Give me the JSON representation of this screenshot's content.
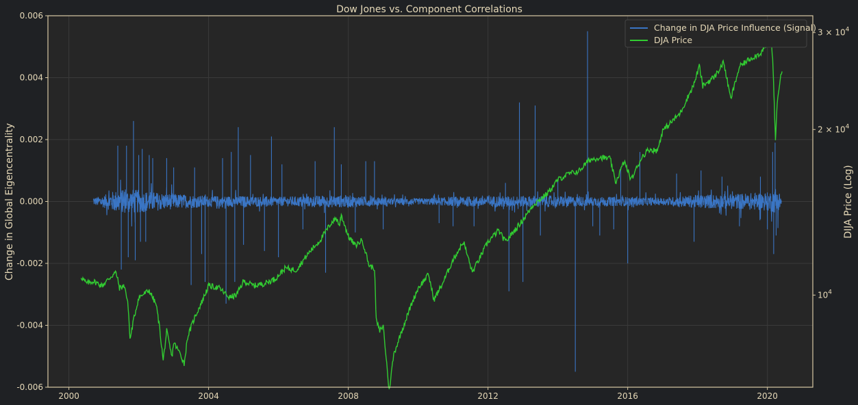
{
  "chart_data": {
    "type": "line",
    "title": "Dow Jones vs. Component Correlations",
    "ylabel": "Change in Global Eigencentrality",
    "y2label": "DIJA Price (Log)",
    "xlim": [
      1999.4,
      2021.3
    ],
    "ylim": [
      -0.006,
      0.006
    ],
    "y2lim": [
      6800,
      32200
    ],
    "y2_scale": "log",
    "x_ticks": [
      "2000",
      "2004",
      "2008",
      "2012",
      "2016",
      "2020"
    ],
    "x_tick_values": [
      2000,
      2004,
      2008,
      2012,
      2016,
      2020
    ],
    "y_ticks": [
      "0.006",
      "0.004",
      "0.002",
      "0.000",
      "-0.002",
      "-0.004",
      "-0.006"
    ],
    "y_tick_values": [
      0.006,
      0.004,
      0.002,
      0.0,
      -0.002,
      -0.004,
      -0.006
    ],
    "y2_ticks": [
      {
        "value": 10000,
        "mantissa": "",
        "exponent": "4"
      },
      {
        "value": 20000,
        "mantissa": "2",
        "exponent": "4"
      },
      {
        "value": 30000,
        "mantissa": "3",
        "exponent": "4"
      }
    ],
    "grid": true,
    "legend_position": "top-right",
    "colors": {
      "background": "#1f2124",
      "plot_bg": "#262626",
      "frame": "#d9caa5",
      "grid": "#3a3a3a",
      "text": "#e6d9b8",
      "signal": "#3a75c4",
      "price": "#32cd32"
    },
    "series": [
      {
        "name": "Change in DJA Price Influence (Signal)",
        "axis": "left",
        "noise_amplitude": [
          [
            2000.7,
            0.00012
          ],
          [
            2001.0,
            0.0002
          ],
          [
            2001.3,
            0.00035
          ],
          [
            2001.8,
            0.0004
          ],
          [
            2002.5,
            0.0003
          ],
          [
            2003.0,
            0.00025
          ],
          [
            2004.0,
            0.00018
          ],
          [
            2005.0,
            0.00018
          ],
          [
            2006.0,
            0.00015
          ],
          [
            2007.0,
            0.00018
          ],
          [
            2008.0,
            0.0002
          ],
          [
            2009.0,
            0.00012
          ],
          [
            2010.0,
            0.0001
          ],
          [
            2011.0,
            0.00015
          ],
          [
            2012.0,
            0.00018
          ],
          [
            2013.0,
            0.00018
          ],
          [
            2014.0,
            0.00018
          ],
          [
            2015.0,
            0.00015
          ],
          [
            2016.0,
            0.00015
          ],
          [
            2017.0,
            0.00012
          ],
          [
            2018.0,
            0.00022
          ],
          [
            2019.0,
            0.00025
          ],
          [
            2020.0,
            0.0003
          ],
          [
            2020.3,
            0.0004
          ],
          [
            2020.4,
            0.0002
          ]
        ],
        "spikes": [
          [
            2001.4,
            0.0018
          ],
          [
            2001.5,
            -0.0022
          ],
          [
            2001.65,
            0.0018
          ],
          [
            2001.7,
            -0.0018
          ],
          [
            2001.85,
            0.0026
          ],
          [
            2001.9,
            -0.0019
          ],
          [
            2002.0,
            0.0015
          ],
          [
            2002.05,
            -0.0013
          ],
          [
            2002.1,
            0.0017
          ],
          [
            2002.2,
            -0.0013
          ],
          [
            2002.3,
            0.0015
          ],
          [
            2002.4,
            0.0014
          ],
          [
            2002.8,
            0.0014
          ],
          [
            2003.0,
            0.0011
          ],
          [
            2003.5,
            -0.0027
          ],
          [
            2003.6,
            0.0011
          ],
          [
            2003.8,
            -0.0017
          ],
          [
            2003.9,
            -0.0026
          ],
          [
            2004.4,
            0.0014
          ],
          [
            2004.5,
            -0.0033
          ],
          [
            2004.65,
            0.0016
          ],
          [
            2004.75,
            -0.0026
          ],
          [
            2004.85,
            0.0024
          ],
          [
            2005.0,
            -0.0014
          ],
          [
            2005.2,
            0.0015
          ],
          [
            2005.6,
            -0.0016
          ],
          [
            2005.8,
            0.0021
          ],
          [
            2006.0,
            -0.0018
          ],
          [
            2006.1,
            0.0012
          ],
          [
            2006.7,
            -0.0009
          ],
          [
            2007.05,
            0.0013
          ],
          [
            2007.35,
            -0.0023
          ],
          [
            2007.6,
            0.0024
          ],
          [
            2007.8,
            0.0012
          ],
          [
            2008.2,
            -0.001
          ],
          [
            2008.5,
            0.0013
          ],
          [
            2008.75,
            0.0013
          ],
          [
            2009.0,
            -0.0009
          ],
          [
            2010.6,
            -0.0007
          ],
          [
            2011.0,
            -0.0008
          ],
          [
            2011.6,
            -0.0008
          ],
          [
            2012.5,
            0.0006
          ],
          [
            2012.6,
            -0.0029
          ],
          [
            2012.9,
            0.0032
          ],
          [
            2013.0,
            -0.0026
          ],
          [
            2013.35,
            0.0031
          ],
          [
            2013.5,
            -0.0011
          ],
          [
            2014.0,
            0.0007
          ],
          [
            2014.5,
            -0.0055
          ],
          [
            2014.85,
            0.0055
          ],
          [
            2015.0,
            -0.0008
          ],
          [
            2015.2,
            -0.0011
          ],
          [
            2015.6,
            -0.0009
          ],
          [
            2015.8,
            0.0011
          ],
          [
            2016.0,
            -0.002
          ],
          [
            2016.35,
            0.0016
          ],
          [
            2017.4,
            0.0009
          ],
          [
            2017.9,
            -0.0013
          ],
          [
            2018.1,
            0.001
          ],
          [
            2018.7,
            0.0008
          ],
          [
            2019.2,
            -0.0008
          ],
          [
            2019.8,
            0.0008
          ],
          [
            2020.0,
            -0.0009
          ],
          [
            2020.15,
            0.0016
          ],
          [
            2020.18,
            -0.0017
          ],
          [
            2020.22,
            0.0019
          ],
          [
            2020.25,
            -0.0011
          ]
        ]
      },
      {
        "name": "DJA Price",
        "axis": "right",
        "points": [
          [
            2000.35,
            10800
          ],
          [
            2000.5,
            10500
          ],
          [
            2000.7,
            10600
          ],
          [
            2000.95,
            10400
          ],
          [
            2001.2,
            10800
          ],
          [
            2001.35,
            11000
          ],
          [
            2001.45,
            10300
          ],
          [
            2001.6,
            10400
          ],
          [
            2001.7,
            9500
          ],
          [
            2001.75,
            8300
          ],
          [
            2001.85,
            9000
          ],
          [
            2002.0,
            9900
          ],
          [
            2002.3,
            10200
          ],
          [
            2002.5,
            9600
          ],
          [
            2002.6,
            8700
          ],
          [
            2002.7,
            7600
          ],
          [
            2002.8,
            8600
          ],
          [
            2002.95,
            7700
          ],
          [
            2003.0,
            8200
          ],
          [
            2003.2,
            7800
          ],
          [
            2003.3,
            7500
          ],
          [
            2003.4,
            8400
          ],
          [
            2003.6,
            9100
          ],
          [
            2003.8,
            9700
          ],
          [
            2004.0,
            10400
          ],
          [
            2004.3,
            10300
          ],
          [
            2004.6,
            9900
          ],
          [
            2004.8,
            10000
          ],
          [
            2005.0,
            10600
          ],
          [
            2005.3,
            10400
          ],
          [
            2005.6,
            10500
          ],
          [
            2005.9,
            10700
          ],
          [
            2006.2,
            11200
          ],
          [
            2006.5,
            11100
          ],
          [
            2006.9,
            12000
          ],
          [
            2007.2,
            12600
          ],
          [
            2007.5,
            13500
          ],
          [
            2007.65,
            13800
          ],
          [
            2007.75,
            13400
          ],
          [
            2007.8,
            14000
          ],
          [
            2008.0,
            12800
          ],
          [
            2008.2,
            12300
          ],
          [
            2008.4,
            12600
          ],
          [
            2008.6,
            11300
          ],
          [
            2008.75,
            11200
          ],
          [
            2008.8,
            9000
          ],
          [
            2008.9,
            8600
          ],
          [
            2009.0,
            8800
          ],
          [
            2009.1,
            7500
          ],
          [
            2009.17,
            6700
          ],
          [
            2009.3,
            7800
          ],
          [
            2009.5,
            8500
          ],
          [
            2009.8,
            9600
          ],
          [
            2010.0,
            10300
          ],
          [
            2010.3,
            10900
          ],
          [
            2010.45,
            9800
          ],
          [
            2010.7,
            10500
          ],
          [
            2011.0,
            11600
          ],
          [
            2011.3,
            12500
          ],
          [
            2011.55,
            11000
          ],
          [
            2011.8,
            11800
          ],
          [
            2012.0,
            12500
          ],
          [
            2012.3,
            13100
          ],
          [
            2012.5,
            12500
          ],
          [
            2012.8,
            13200
          ],
          [
            2013.0,
            13700
          ],
          [
            2013.3,
            14600
          ],
          [
            2013.7,
            15300
          ],
          [
            2014.0,
            16200
          ],
          [
            2014.3,
            16600
          ],
          [
            2014.6,
            16800
          ],
          [
            2014.9,
            17600
          ],
          [
            2015.2,
            17800
          ],
          [
            2015.5,
            17700
          ],
          [
            2015.65,
            16000
          ],
          [
            2015.9,
            17500
          ],
          [
            2016.1,
            16200
          ],
          [
            2016.4,
            17800
          ],
          [
            2016.6,
            18400
          ],
          [
            2016.85,
            18300
          ],
          [
            2017.0,
            19900
          ],
          [
            2017.5,
            21400
          ],
          [
            2017.9,
            24200
          ],
          [
            2018.05,
            26100
          ],
          [
            2018.15,
            24000
          ],
          [
            2018.5,
            25000
          ],
          [
            2018.75,
            26500
          ],
          [
            2018.95,
            22700
          ],
          [
            2019.2,
            26000
          ],
          [
            2019.5,
            26900
          ],
          [
            2019.8,
            27500
          ],
          [
            2020.0,
            28700
          ],
          [
            2020.1,
            29300
          ],
          [
            2020.15,
            27000
          ],
          [
            2020.2,
            22000
          ],
          [
            2020.23,
            19000
          ],
          [
            2020.28,
            22500
          ],
          [
            2020.35,
            24300
          ],
          [
            2020.42,
            25500
          ]
        ]
      }
    ]
  }
}
